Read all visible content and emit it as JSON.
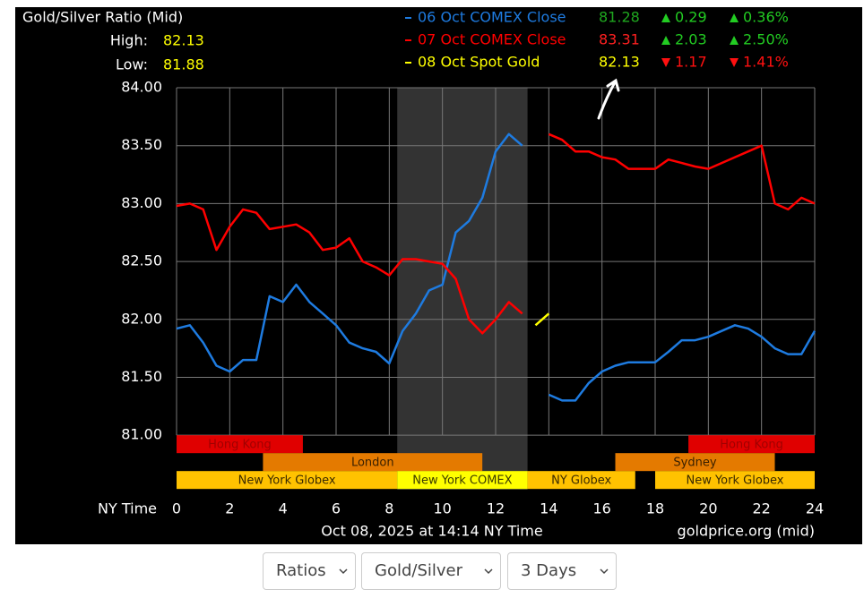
{
  "chart_data": {
    "type": "line",
    "title": "Gold/Silver Ratio (Mid)",
    "high_label": "High:",
    "high": "82.13",
    "low_label": "Low:",
    "low": "81.88",
    "x_label": "NY Time",
    "footer": "Oct 08, 2025 at 14:14 NY Time",
    "source": "goldprice.org (mid)",
    "x": [
      0,
      0.5,
      1,
      1.5,
      2,
      2.5,
      3,
      3.5,
      4,
      4.5,
      5,
      5.5,
      6,
      6.5,
      7,
      7.5,
      8,
      8.5,
      9,
      9.5,
      10,
      10.5,
      11,
      11.5,
      12,
      12.5,
      13,
      13.5,
      14,
      14.5,
      15,
      15.5,
      16,
      16.5,
      17,
      17.5,
      18,
      18.5,
      19,
      19.5,
      20,
      20.5,
      21,
      21.5,
      22,
      22.5,
      23,
      23.5,
      24
    ],
    "series": [
      {
        "name": "06 Oct COMEX Close",
        "color": "#1e7be0",
        "close": "81.28",
        "close_color": "#1fa81f",
        "change": "0.29",
        "change_pct": "0.36%",
        "direction": "up",
        "values": [
          81.92,
          81.95,
          81.8,
          81.6,
          81.55,
          81.65,
          81.65,
          82.2,
          82.15,
          82.3,
          82.15,
          82.05,
          81.95,
          81.8,
          81.75,
          81.72,
          81.62,
          81.9,
          82.05,
          82.25,
          82.3,
          82.75,
          82.85,
          83.05,
          83.45,
          83.6,
          83.5,
          null,
          81.35,
          81.3,
          81.3,
          81.45,
          81.55,
          81.6,
          81.63,
          81.63,
          81.63,
          81.72,
          81.82,
          81.82,
          81.85,
          81.9,
          81.95,
          81.92,
          81.85,
          81.75,
          81.7,
          81.7,
          81.9
        ]
      },
      {
        "name": "07 Oct COMEX Close",
        "color": "#ff0000",
        "close": "83.31",
        "close_color": "#ff2020",
        "change": "2.03",
        "change_pct": "2.50%",
        "direction": "up",
        "values": [
          82.98,
          83.0,
          82.95,
          82.6,
          82.8,
          82.95,
          82.92,
          82.78,
          82.8,
          82.82,
          82.75,
          82.6,
          82.62,
          82.7,
          82.5,
          82.45,
          82.38,
          82.52,
          82.52,
          82.5,
          82.48,
          82.35,
          82.0,
          81.88,
          82.0,
          82.15,
          82.05,
          null,
          83.6,
          83.55,
          83.45,
          83.45,
          83.4,
          83.38,
          83.3,
          83.3,
          83.3,
          83.38,
          83.35,
          83.32,
          83.3,
          83.35,
          83.4,
          83.45,
          83.5,
          83.0,
          82.95,
          83.05,
          83.0
        ]
      },
      {
        "name": "08 Oct Spot Gold",
        "color": "#ffff00",
        "close": "82.13",
        "close_color": "#ffff00",
        "change": "1.17",
        "change_pct": "1.41%",
        "direction": "down",
        "values": [
          null,
          null,
          null,
          null,
          null,
          null,
          null,
          null,
          null,
          null,
          null,
          null,
          null,
          null,
          null,
          null,
          null,
          null,
          null,
          null,
          null,
          null,
          null,
          null,
          null,
          null,
          null,
          81.95,
          82.05,
          null,
          null,
          null,
          null,
          null,
          null,
          null,
          null,
          null,
          null,
          null,
          null,
          null,
          null,
          null,
          null,
          null,
          null,
          null,
          null
        ]
      }
    ],
    "xlim": [
      0,
      24
    ],
    "xticks": [
      0,
      2,
      4,
      6,
      8,
      10,
      12,
      14,
      16,
      18,
      20,
      22,
      24
    ],
    "ylim": [
      80.53,
      84
    ],
    "yticks": [
      {
        "value": 81,
        "label": "81.00"
      },
      {
        "value": 81.5,
        "label": "81.50"
      },
      {
        "value": 82,
        "label": "82.00"
      },
      {
        "value": 82.5,
        "label": "82.50"
      },
      {
        "value": 83,
        "label": "83.00"
      },
      {
        "value": 83.5,
        "label": "83.50"
      },
      {
        "value": 84,
        "label": "84.00"
      }
    ],
    "grid": true,
    "shaded": [
      8.3,
      13.2
    ],
    "session_rows": [
      [
        {
          "label": "Hong Kong",
          "start": 0,
          "end": 4.75,
          "color": "#e00000",
          "text_color": "#a00000"
        },
        {
          "label": "Hong Kong",
          "start": 19.25,
          "end": 24,
          "color": "#e00000",
          "text_color": "#a00000"
        }
      ],
      [
        {
          "label": "London",
          "start": 3.25,
          "end": 11.5,
          "color": "#e47a00",
          "text_color": "#3a2000"
        },
        {
          "label": "Sydney",
          "start": 16.5,
          "end": 22.5,
          "color": "#e47a00",
          "text_color": "#3a2000"
        }
      ],
      [
        {
          "label": "New York Globex",
          "start": 0,
          "end": 8.3,
          "color": "#ffc200",
          "text_color": "#3a2a00"
        },
        {
          "label": "New York COMEX",
          "start": 8.3,
          "end": 13.2,
          "color": "#ffff00",
          "text_color": "#3a3a00"
        },
        {
          "label": "NY Globex",
          "start": 13.2,
          "end": 17.25,
          "color": "#ffc200",
          "text_color": "#3a2a00"
        },
        {
          "label": "New York Globex",
          "start": 18,
          "end": 24,
          "color": "#ffc200",
          "text_color": "#3a2a00"
        }
      ]
    ]
  },
  "controls": [
    "Ratios",
    "Gold/Silver",
    "3 Days"
  ]
}
